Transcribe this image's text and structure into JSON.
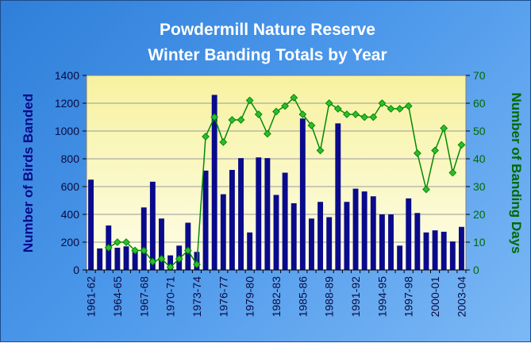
{
  "chart_data": {
    "type": "bar+line",
    "title": [
      "Powdermill Nature Reserve",
      "Winter Banding Totals by Year"
    ],
    "ylabel_left": "Number of Birds Banded",
    "ylabel_right": "Number of Banding Days",
    "ylim_left": [
      0,
      1400
    ],
    "ylim_right": [
      0,
      70
    ],
    "yticks_left": [
      0,
      200,
      400,
      600,
      800,
      1000,
      1200,
      1400
    ],
    "yticks_right": [
      0,
      10,
      20,
      30,
      40,
      50,
      60,
      70
    ],
    "grid": true,
    "x_tick_labels": [
      "1961-62",
      "1964-65",
      "1967-68",
      "1970-71",
      "1973-74",
      "1976-77",
      "1979-80",
      "1982-83",
      "1985-86",
      "1988-89",
      "1991-92",
      "1994-95",
      "1997-98",
      "2000-01",
      "2003-04"
    ],
    "x_tick_every": 3,
    "series": [
      {
        "type": "bar",
        "axis": "left",
        "color": "#0a0a8c",
        "values": [
          650,
          155,
          320,
          160,
          170,
          130,
          450,
          635,
          370,
          105,
          175,
          340,
          130,
          715,
          1260,
          545,
          720,
          805,
          270,
          810,
          805,
          540,
          700,
          480,
          1090,
          370,
          490,
          380,
          1055,
          490,
          585,
          565,
          530,
          400,
          400,
          175,
          515,
          410,
          270,
          285,
          275,
          205,
          310
        ]
      },
      {
        "type": "line",
        "axis": "right",
        "color": "#008a00",
        "marker_color": "#2ebd2e",
        "values": [
          null,
          null,
          8,
          10,
          10,
          7,
          7,
          3,
          4,
          1,
          4,
          7,
          2,
          48,
          55,
          46,
          54,
          54,
          61,
          56,
          49,
          57,
          59,
          62,
          56,
          52,
          43,
          60,
          58,
          56,
          56,
          55,
          55,
          60,
          58,
          58,
          59,
          42,
          29,
          43,
          51,
          35,
          45
        ]
      }
    ]
  }
}
